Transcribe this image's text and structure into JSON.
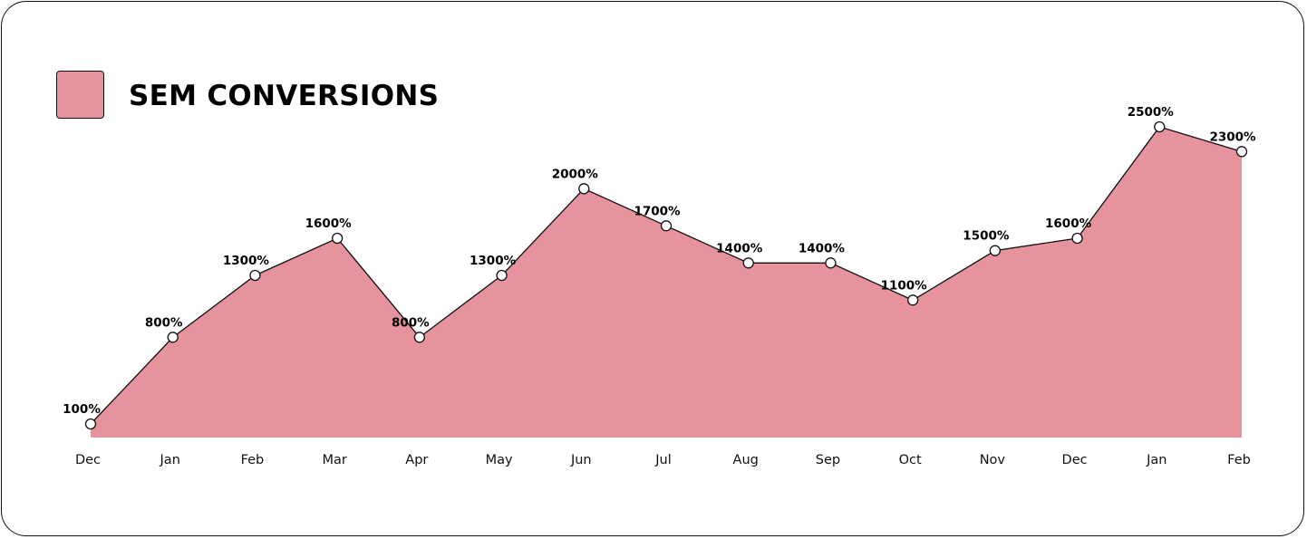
{
  "colors": {
    "area": "#e6939e",
    "line": "#111111",
    "point": "#ffffff",
    "border": "#111111"
  },
  "legend": {
    "label": "SEM CONVERSIONS"
  },
  "chart_data": {
    "type": "area",
    "title": "",
    "xlabel": "",
    "ylabel": "",
    "grid": false,
    "legend_position": "top-left",
    "ylim": [
      0,
      2500
    ],
    "categories": [
      "Dec",
      "Jan",
      "Feb",
      "Mar",
      "Apr",
      "May",
      "Jun",
      "Jul",
      "Aug",
      "Sep",
      "Oct",
      "Nov",
      "Dec",
      "Jan",
      "Feb"
    ],
    "series": [
      {
        "name": "SEM CONVERSIONS",
        "values": [
          100,
          800,
          1300,
          1600,
          800,
          1300,
          2000,
          1700,
          1400,
          1400,
          1100,
          1500,
          1600,
          2500,
          2300
        ],
        "labels": [
          "100%",
          "800%",
          "1300%",
          "1600%",
          "800%",
          "1300%",
          "2000%",
          "1700%",
          "1400%",
          "1400%",
          "1100%",
          "1500%",
          "1600%",
          "2500%",
          "2300%"
        ]
      }
    ]
  }
}
